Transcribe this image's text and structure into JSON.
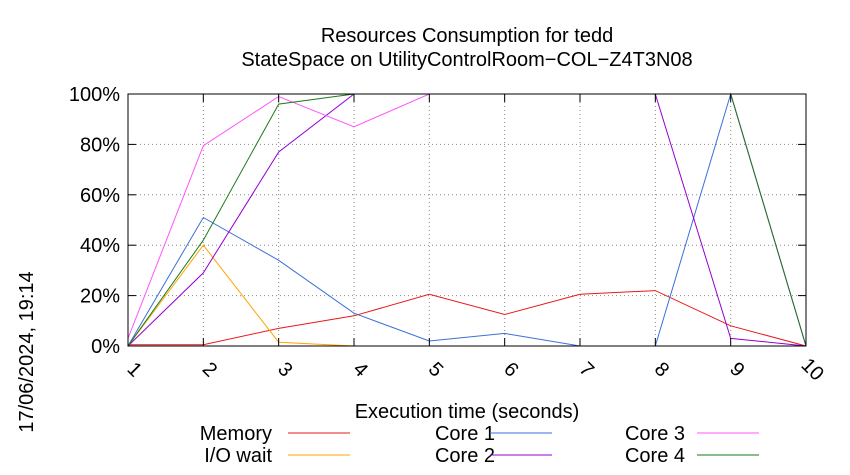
{
  "timestamp": "17/06/2024, 19:14",
  "chart_data": {
    "type": "line",
    "title": "Resources Consumption for tedd",
    "subtitle": "StateSpace on UtilityControlRoom−COL−Z4T3N08",
    "xlabel": "Execution time (seconds)",
    "ylabel": "",
    "xlim": [
      1,
      10
    ],
    "ylim": [
      0,
      100
    ],
    "grid": true,
    "legend_position": "bottom",
    "x": [
      1,
      2,
      3,
      4,
      5,
      6,
      7,
      8,
      9,
      10
    ],
    "x_tick_labels": [
      "1",
      "2",
      "3",
      "4",
      "5",
      "6",
      "7",
      "8",
      "9",
      "10"
    ],
    "y_ticks": [
      0,
      20,
      40,
      60,
      80,
      100
    ],
    "y_tick_labels": [
      "0%",
      "20%",
      "40%",
      "60%",
      "80%",
      "100%"
    ],
    "series": [
      {
        "name": "Memory",
        "color": "#e8191b",
        "values": [
          0.5,
          0.5,
          7,
          12,
          20.5,
          12.5,
          20.5,
          22,
          8,
          0
        ]
      },
      {
        "name": "I/O wait",
        "color": "#ffa500",
        "values": [
          0,
          40,
          1.5,
          0,
          0,
          0,
          0,
          0,
          0,
          0
        ]
      },
      {
        "name": "Core 1",
        "color": "#3a6fd8",
        "values": [
          0,
          51,
          34,
          13,
          2,
          5,
          0,
          0,
          100,
          0
        ]
      },
      {
        "name": "Core 2",
        "color": "#9400d3",
        "values": [
          0,
          29,
          77,
          100,
          100,
          100,
          100,
          100,
          3,
          0
        ]
      },
      {
        "name": "Core 3",
        "color": "#ff55ff",
        "values": [
          3,
          79.5,
          99,
          87,
          100,
          100,
          100,
          100,
          100,
          0
        ]
      },
      {
        "name": "Core 4",
        "color": "#1a7a1a",
        "values": [
          0,
          42,
          96,
          100,
          100,
          100,
          100,
          100,
          100,
          0
        ]
      }
    ]
  }
}
